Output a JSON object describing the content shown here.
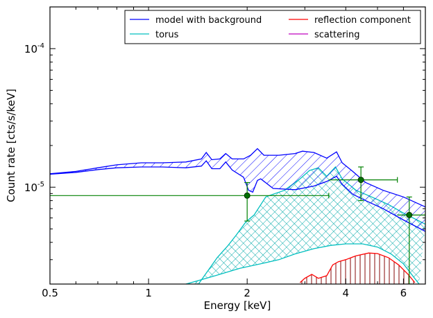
{
  "chart_data": {
    "type": "line",
    "title": "",
    "xlabel": "Energy [keV]",
    "ylabel": "Count rate [cts/s/keV]",
    "xscale": "log",
    "yscale": "log",
    "xlim": [
      0.5,
      7.0
    ],
    "ylim": [
      2e-06,
      0.0002
    ],
    "grid": false,
    "legend_placement": "top-right",
    "x_ticks": [
      {
        "value": 0.5,
        "label": "0.5"
      },
      {
        "value": 1,
        "label": "1"
      },
      {
        "value": 2,
        "label": "2"
      },
      {
        "value": 4,
        "label": "4"
      },
      {
        "value": 6,
        "label": "6"
      }
    ],
    "y_ticks": [
      {
        "value": 1e-05,
        "mantissa": "10",
        "exponent": "-5"
      },
      {
        "value": 0.0001,
        "mantissa": "10",
        "exponent": "-4"
      }
    ],
    "series": [
      {
        "name": "model with background",
        "color": "#0000ff",
        "style": "band",
        "hatch": "diagonal",
        "upper": [
          [
            0.5,
            1.25e-05
          ],
          [
            0.6,
            1.3e-05
          ],
          [
            0.7,
            1.38e-05
          ],
          [
            0.8,
            1.45e-05
          ],
          [
            0.95,
            1.5e-05
          ],
          [
            1.1,
            1.5e-05
          ],
          [
            1.3,
            1.52e-05
          ],
          [
            1.45,
            1.6e-05
          ],
          [
            1.5,
            1.78e-05
          ],
          [
            1.56,
            1.58e-05
          ],
          [
            1.65,
            1.6e-05
          ],
          [
            1.72,
            1.75e-05
          ],
          [
            1.8,
            1.6e-05
          ],
          [
            1.95,
            1.6e-05
          ],
          [
            2.05,
            1.7e-05
          ],
          [
            2.15,
            1.9e-05
          ],
          [
            2.25,
            1.7e-05
          ],
          [
            2.5,
            1.7e-05
          ],
          [
            2.8,
            1.75e-05
          ],
          [
            2.95,
            1.82e-05
          ],
          [
            3.2,
            1.78e-05
          ],
          [
            3.5,
            1.62e-05
          ],
          [
            3.75,
            1.8e-05
          ],
          [
            3.9,
            1.5e-05
          ],
          [
            4.2,
            1.3e-05
          ],
          [
            4.6,
            1.08e-05
          ],
          [
            5.2,
            9.5e-06
          ],
          [
            6.0,
            8.5e-06
          ],
          [
            7.0,
            7.2e-06
          ]
        ],
        "lower": [
          [
            0.5,
            1.24e-05
          ],
          [
            0.6,
            1.28e-05
          ],
          [
            0.7,
            1.34e-05
          ],
          [
            0.8,
            1.38e-05
          ],
          [
            0.95,
            1.4e-05
          ],
          [
            1.1,
            1.4e-05
          ],
          [
            1.3,
            1.38e-05
          ],
          [
            1.45,
            1.42e-05
          ],
          [
            1.5,
            1.55e-05
          ],
          [
            1.56,
            1.36e-05
          ],
          [
            1.65,
            1.36e-05
          ],
          [
            1.72,
            1.52e-05
          ],
          [
            1.8,
            1.33e-05
          ],
          [
            1.95,
            1.18e-05
          ],
          [
            2.02,
            9.5e-06
          ],
          [
            2.08,
            9.2e-06
          ],
          [
            2.15,
            1.12e-05
          ],
          [
            2.2,
            1.15e-05
          ],
          [
            2.4,
            9.8e-06
          ],
          [
            2.8,
            9.6e-06
          ],
          [
            3.2,
            1.02e-05
          ],
          [
            3.5,
            1.1e-05
          ],
          [
            3.75,
            1.2e-05
          ],
          [
            3.9,
            1.05e-05
          ],
          [
            4.2,
            8.9e-06
          ],
          [
            4.6,
            8e-06
          ],
          [
            5.2,
            7e-06
          ],
          [
            6.0,
            5.8e-06
          ],
          [
            7.0,
            4.8e-06
          ]
        ]
      },
      {
        "name": "torus",
        "color": "#00bfbf",
        "style": "band",
        "hatch": "cross",
        "upper": [
          [
            1.42,
            2e-06
          ],
          [
            1.5,
            2.4e-06
          ],
          [
            1.62,
            3.1e-06
          ],
          [
            1.75,
            3.8e-06
          ],
          [
            1.85,
            4.5e-06
          ],
          [
            1.98,
            5.6e-06
          ],
          [
            2.1,
            6.3e-06
          ],
          [
            2.28,
            8.5e-06
          ],
          [
            2.4,
            8.9e-06
          ],
          [
            2.6,
            9.5e-06
          ],
          [
            2.9,
            1.15e-05
          ],
          [
            3.1,
            1.32e-05
          ],
          [
            3.3,
            1.38e-05
          ],
          [
            3.5,
            1.2e-05
          ],
          [
            3.72,
            1.4e-05
          ],
          [
            3.9,
            1.15e-05
          ],
          [
            4.3,
            9.5e-06
          ],
          [
            4.8,
            8.5e-06
          ],
          [
            5.4,
            7.5e-06
          ],
          [
            6.0,
            6.5e-06
          ],
          [
            6.8,
            5.6e-06
          ],
          [
            7.0,
            5.4e-06
          ]
        ],
        "lower": [
          [
            1.3,
            2e-06
          ],
          [
            1.4,
            2.1e-06
          ],
          [
            1.6,
            2.3e-06
          ],
          [
            1.9,
            2.6e-06
          ],
          [
            2.2,
            2.8e-06
          ],
          [
            2.5,
            3e-06
          ],
          [
            2.8,
            3.3e-06
          ],
          [
            3.2,
            3.6e-06
          ],
          [
            3.6,
            3.8e-06
          ],
          [
            4.0,
            3.9e-06
          ],
          [
            4.5,
            3.9e-06
          ],
          [
            5.0,
            3.7e-06
          ],
          [
            5.5,
            3.3e-06
          ],
          [
            6.0,
            2.8e-06
          ],
          [
            6.4,
            2.3e-06
          ],
          [
            6.7,
            2e-06
          ]
        ]
      },
      {
        "name": "reflection component",
        "color": "#ff0000",
        "style": "band",
        "hatch": "vertical",
        "upper": [
          [
            2.9,
            2.05e-06
          ],
          [
            3.0,
            2.2e-06
          ],
          [
            3.15,
            2.35e-06
          ],
          [
            3.3,
            2.2e-06
          ],
          [
            3.5,
            2.3e-06
          ],
          [
            3.65,
            2.75e-06
          ],
          [
            3.8,
            2.9e-06
          ],
          [
            4.0,
            3e-06
          ],
          [
            4.3,
            3.2e-06
          ],
          [
            4.7,
            3.35e-06
          ],
          [
            5.0,
            3.32e-06
          ],
          [
            5.4,
            3.1e-06
          ],
          [
            5.8,
            2.75e-06
          ],
          [
            6.2,
            2.35e-06
          ],
          [
            6.5,
            2.05e-06
          ]
        ],
        "lower": [
          [
            2.9,
            2e-06
          ],
          [
            6.5,
            2e-06
          ]
        ]
      },
      {
        "name": "scattering",
        "color": "#bf00bf",
        "style": "line",
        "points": []
      },
      {
        "name": "",
        "color": "#008000",
        "style": "errorbar",
        "points": [
          {
            "x": 2.0,
            "y": 8.7e-06,
            "xlo": 0.5,
            "xhi": 3.55,
            "ylo": 5.7e-06,
            "yhi": 1.08e-05
          },
          {
            "x": 4.45,
            "y": 1.13e-05,
            "xlo": 3.55,
            "xhi": 5.75,
            "ylo": 8e-06,
            "yhi": 1.4e-05
          },
          {
            "x": 6.25,
            "y": 6.3e-06,
            "xlo": 5.75,
            "xhi": 7.0,
            "ylo": 2e-06,
            "yhi": 8.5e-06
          }
        ]
      }
    ]
  }
}
